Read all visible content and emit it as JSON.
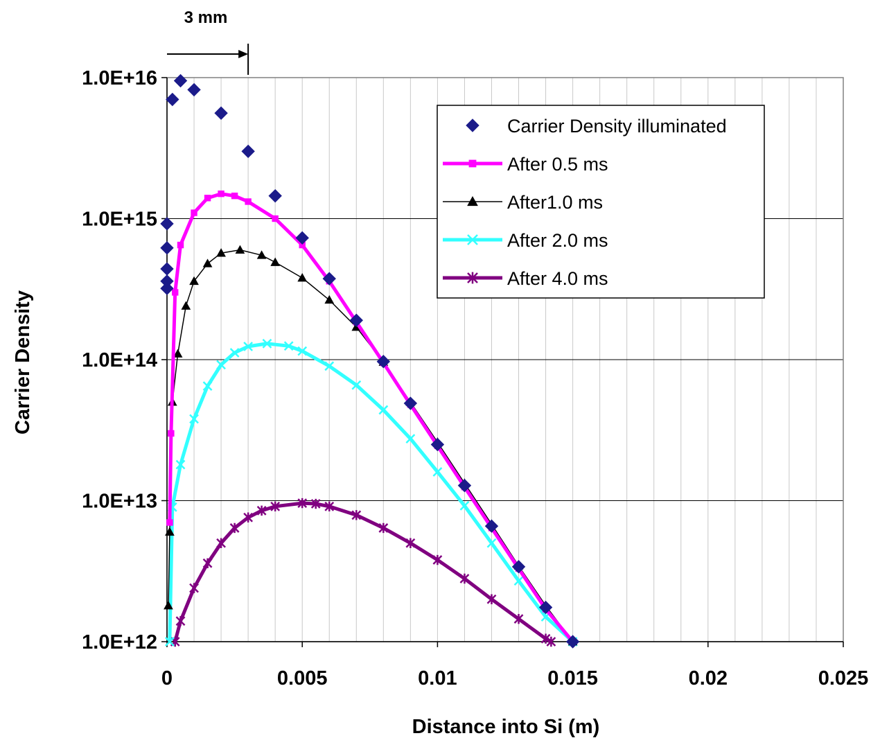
{
  "chart_data": {
    "type": "scatter",
    "xlabel": "Distance into Si (m)",
    "ylabel": "Carrier Density",
    "x_ticks": [
      "0",
      "0.005",
      "0.01",
      "0.015",
      "0.02",
      "0.025"
    ],
    "y_ticks": [
      "1.0E+16",
      "1.0E+15",
      "1.0E+14",
      "1.0E+13",
      "1.0E+12"
    ],
    "xlim": [
      0,
      0.025
    ],
    "ylim": [
      1000000000000.0,
      1e+16
    ],
    "y_scale": "log",
    "grid": "horizontal lines at decades, vertical lines every 0.001",
    "legend_position": "top-right",
    "annotation": {
      "label": "3 mm",
      "x_from": 0,
      "x_to": 0.003
    },
    "series": [
      {
        "name": "Carrier Density illuminated",
        "color": "#1b1b8a",
        "marker": "diamond",
        "line": false,
        "points": [
          [
            0,
            320000000000000.0
          ],
          [
            0,
            360000000000000.0
          ],
          [
            0,
            440000000000000.0
          ],
          [
            0,
            620000000000000.0
          ],
          [
            0,
            920000000000000.0
          ],
          [
            0.0002,
            7000000000000000.0
          ],
          [
            0.0005,
            9500000000000000.0
          ],
          [
            0.001,
            8200000000000000.0
          ],
          [
            0.002,
            5600000000000000.0
          ],
          [
            0.003,
            3000000000000000.0
          ],
          [
            0.004,
            1450000000000000.0
          ],
          [
            0.005,
            730000000000000.0
          ],
          [
            0.006,
            375000000000000.0
          ],
          [
            0.007,
            190000000000000.0
          ],
          [
            0.008,
            97000000000000.0
          ],
          [
            0.009,
            49000000000000.0
          ],
          [
            0.01,
            25000000000000.0
          ],
          [
            0.011,
            12800000000000.0
          ],
          [
            0.012,
            6600000000000.0
          ],
          [
            0.013,
            3400000000000.0
          ],
          [
            0.014,
            1750000000000.0
          ],
          [
            0.015,
            1000000000000.0
          ]
        ]
      },
      {
        "name": "After 0.5 ms",
        "color": "#ff00ff",
        "marker": "square",
        "line": true,
        "points": [
          [
            0.0001,
            7000000000000.0
          ],
          [
            0.00015,
            30000000000000.0
          ],
          [
            0.0003,
            300000000000000.0
          ],
          [
            0.0005,
            650000000000000.0
          ],
          [
            0.001,
            1100000000000000.0
          ],
          [
            0.0015,
            1400000000000000.0
          ],
          [
            0.002,
            1500000000000000.0
          ],
          [
            0.0025,
            1450000000000000.0
          ],
          [
            0.003,
            1320000000000000.0
          ],
          [
            0.004,
            1000000000000000.0
          ],
          [
            0.005,
            650000000000000.0
          ],
          [
            0.006,
            360000000000000.0
          ],
          [
            0.007,
            185000000000000.0
          ],
          [
            0.008,
            95000000000000.0
          ],
          [
            0.009,
            48000000000000.0
          ],
          [
            0.01,
            24500000000000.0
          ],
          [
            0.011,
            12500000000000.0
          ],
          [
            0.012,
            6400000000000.0
          ],
          [
            0.013,
            3300000000000.0
          ],
          [
            0.014,
            1700000000000.0
          ],
          [
            0.015,
            1000000000000.0
          ]
        ]
      },
      {
        "name": "After1.0 ms",
        "color": "#000000",
        "marker": "triangle",
        "line": true,
        "points": [
          [
            5e-05,
            1800000000000.0
          ],
          [
            0.0001,
            6000000000000.0
          ],
          [
            0.0002,
            50000000000000.0
          ],
          [
            0.0004,
            110000000000000.0
          ],
          [
            0.0007,
            240000000000000.0
          ],
          [
            0.001,
            360000000000000.0
          ],
          [
            0.0015,
            480000000000000.0
          ],
          [
            0.002,
            570000000000000.0
          ],
          [
            0.0027,
            600000000000000.0
          ],
          [
            0.0035,
            550000000000000.0
          ],
          [
            0.004,
            490000000000000.0
          ],
          [
            0.005,
            380000000000000.0
          ],
          [
            0.006,
            265000000000000.0
          ],
          [
            0.007,
            170000000000000.0
          ],
          [
            0.008,
            96000000000000.0
          ],
          [
            0.009,
            50000000000000.0
          ],
          [
            0.01,
            26000000000000.0
          ],
          [
            0.011,
            13300000000000.0
          ],
          [
            0.012,
            6800000000000.0
          ],
          [
            0.013,
            3450000000000.0
          ],
          [
            0.014,
            1800000000000.0
          ],
          [
            0.015,
            1000000000000.0
          ]
        ]
      },
      {
        "name": "After 2.0 ms",
        "color": "#33ffff",
        "marker": "x",
        "line": true,
        "points": [
          [
            0.0001,
            1000000000000.0
          ],
          [
            0.0002,
            9000000000000.0
          ],
          [
            0.0005,
            18000000000000.0
          ],
          [
            0.001,
            38000000000000.0
          ],
          [
            0.0015,
            65000000000000.0
          ],
          [
            0.002,
            92000000000000.0
          ],
          [
            0.0025,
            112000000000000.0
          ],
          [
            0.003,
            124000000000000.0
          ],
          [
            0.0037,
            130000000000000.0
          ],
          [
            0.0045,
            125000000000000.0
          ],
          [
            0.005,
            115000000000000.0
          ],
          [
            0.006,
            90000000000000.0
          ],
          [
            0.007,
            66000000000000.0
          ],
          [
            0.008,
            44000000000000.0
          ],
          [
            0.009,
            27500000000000.0
          ],
          [
            0.01,
            16000000000000.0
          ],
          [
            0.011,
            9200000000000.0
          ],
          [
            0.012,
            5000000000000.0
          ],
          [
            0.013,
            2700000000000.0
          ],
          [
            0.014,
            1500000000000.0
          ],
          [
            0.015,
            1000000000000.0
          ]
        ]
      },
      {
        "name": "After 4.0 ms",
        "color": "#800080",
        "marker": "star",
        "line": true,
        "points": [
          [
            0.0003,
            1000000000000.0
          ],
          [
            0.0005,
            1400000000000.0
          ],
          [
            0.001,
            2400000000000.0
          ],
          [
            0.0015,
            3600000000000.0
          ],
          [
            0.002,
            5000000000000.0
          ],
          [
            0.0025,
            6400000000000.0
          ],
          [
            0.003,
            7600000000000.0
          ],
          [
            0.0035,
            8500000000000.0
          ],
          [
            0.004,
            9100000000000.0
          ],
          [
            0.005,
            9600000000000.0
          ],
          [
            0.0055,
            9500000000000.0
          ],
          [
            0.006,
            9100000000000.0
          ],
          [
            0.007,
            7900000000000.0
          ],
          [
            0.008,
            6400000000000.0
          ],
          [
            0.009,
            5000000000000.0
          ],
          [
            0.01,
            3800000000000.0
          ],
          [
            0.011,
            2800000000000.0
          ],
          [
            0.012,
            2000000000000.0
          ],
          [
            0.013,
            1450000000000.0
          ],
          [
            0.014,
            1050000000000.0
          ],
          [
            0.0142,
            1000000000000.0
          ]
        ]
      }
    ]
  }
}
